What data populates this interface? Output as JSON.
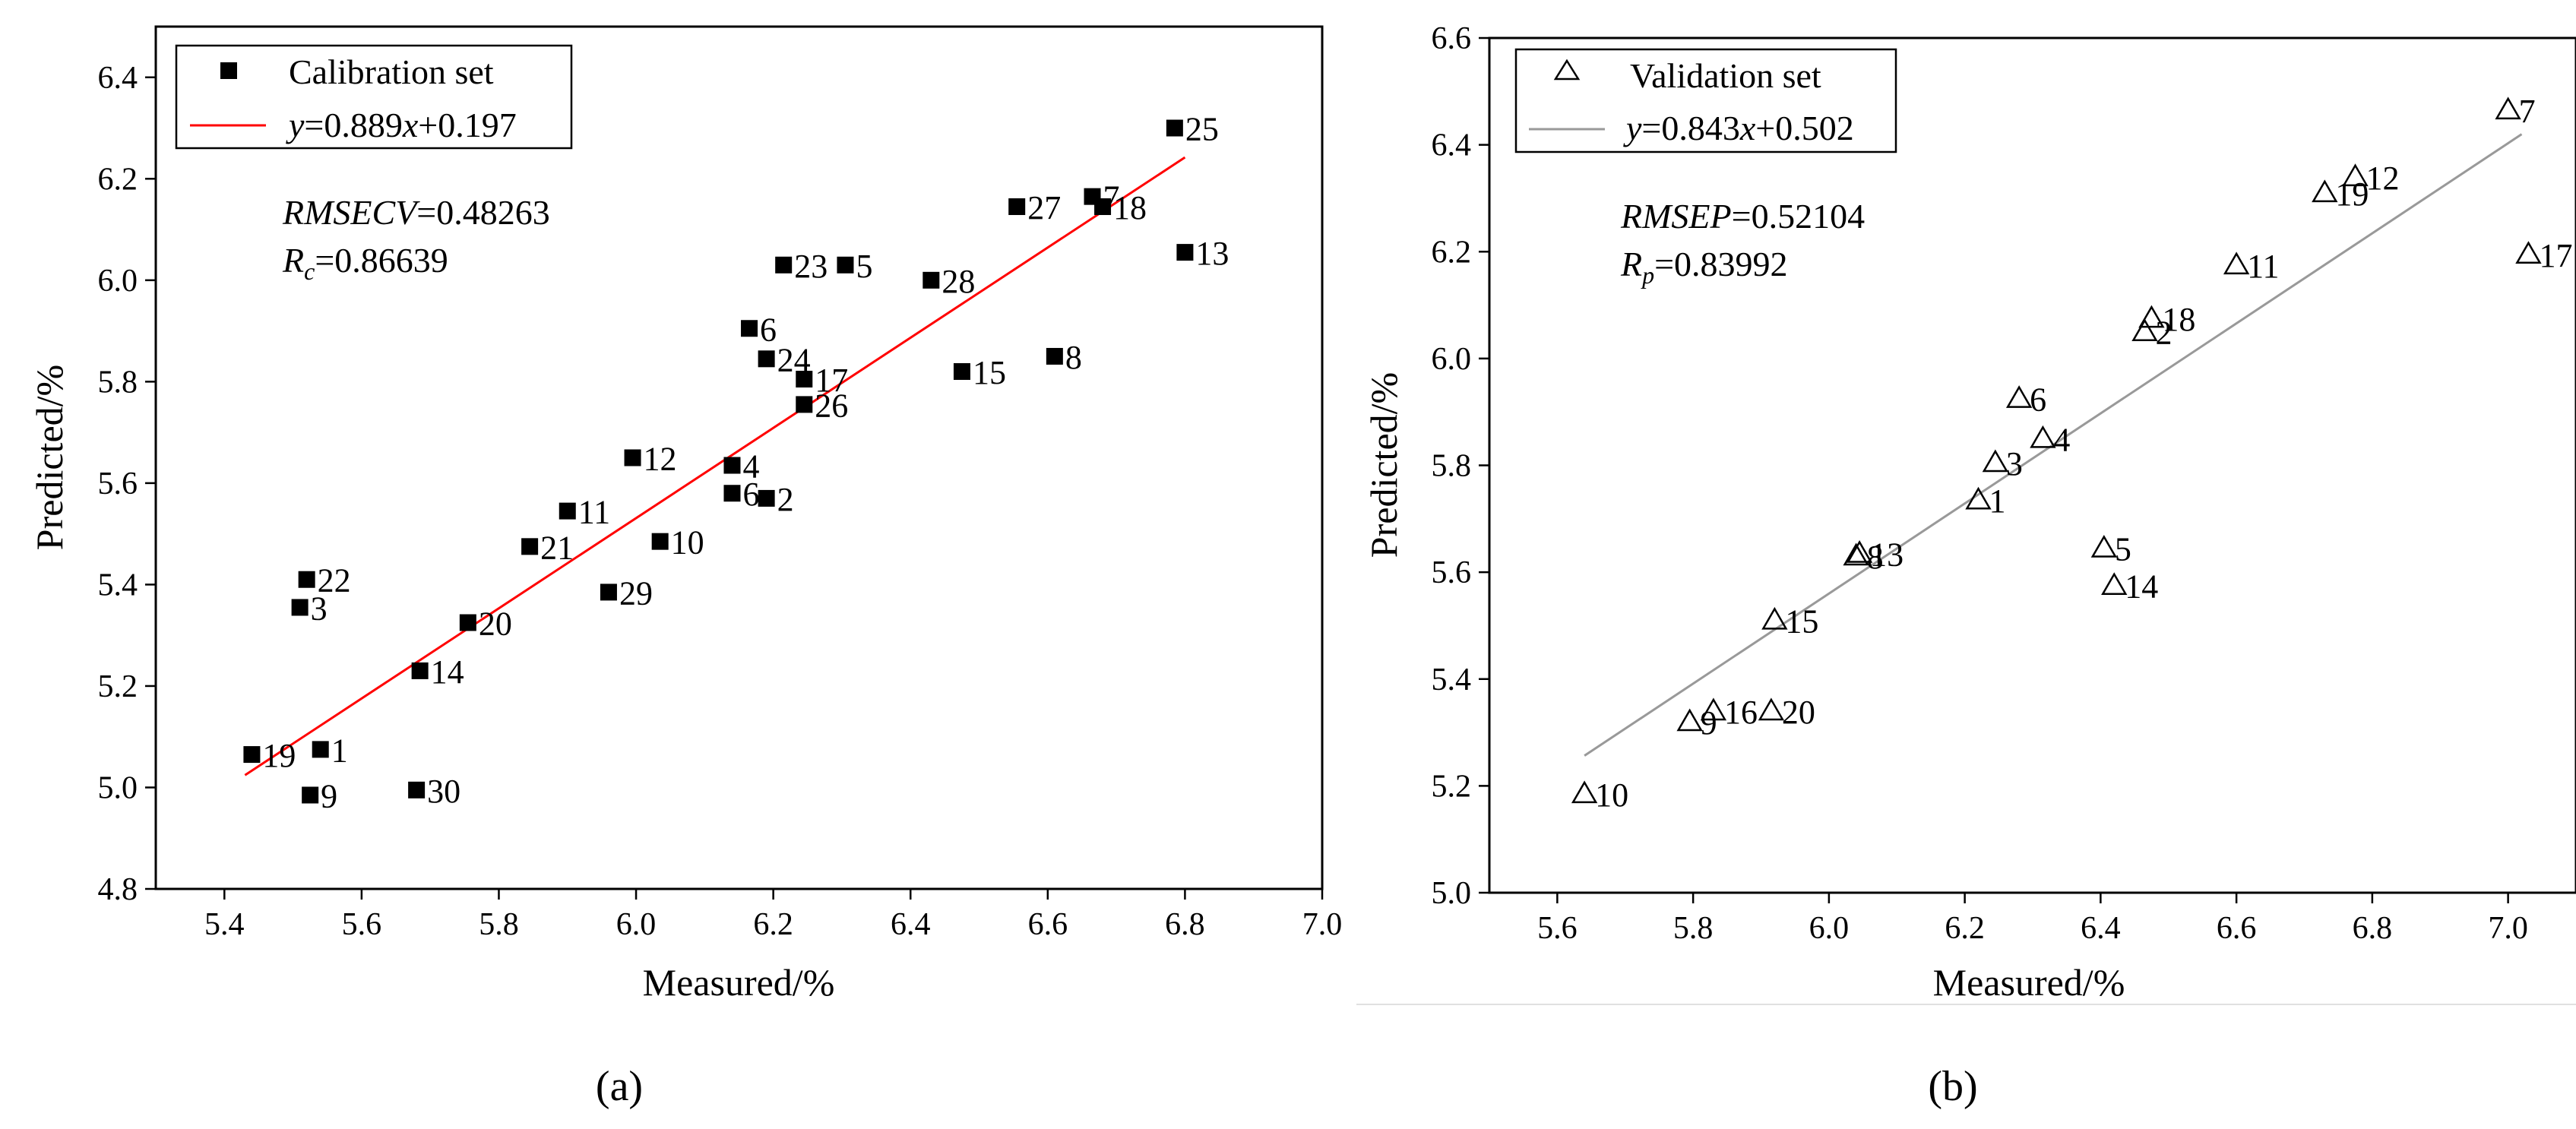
{
  "chart_data": [
    {
      "type": "scatter",
      "panel_label": "(a)",
      "xlabel": "Measured/%",
      "ylabel": "Predicted/%",
      "xlim": [
        5.3,
        7.0
      ],
      "ylim": [
        4.8,
        6.5
      ],
      "xticks": [
        5.4,
        5.6,
        5.8,
        6.0,
        6.2,
        6.4,
        6.6,
        6.8,
        7.0
      ],
      "yticks": [
        4.8,
        5.0,
        5.2,
        5.4,
        5.6,
        5.8,
        6.0,
        6.2,
        6.4
      ],
      "marker": "filled-square",
      "legend": {
        "series_name": "Calibration set",
        "fit_label": {
          "y": "y",
          "eq1": "=0.889",
          "x": "x",
          "eq2": "+0.197"
        }
      },
      "fit": {
        "slope": 0.889,
        "intercept": 0.197,
        "x_range": [
          5.43,
          6.8
        ],
        "color": "#ff0000"
      },
      "stats": {
        "line1": {
          "name": "RMSECV",
          "value": "=0.48263"
        },
        "line2": {
          "name": "R",
          "sub": "c",
          "value": "=0.86639"
        }
      },
      "points": [
        {
          "label": "1",
          "x": 5.54,
          "y": 5.075
        },
        {
          "label": "2",
          "x": 6.19,
          "y": 5.57
        },
        {
          "label": "3",
          "x": 5.51,
          "y": 5.355
        },
        {
          "label": "4",
          "x": 6.14,
          "y": 5.635
        },
        {
          "label": "5",
          "x": 6.305,
          "y": 6.03
        },
        {
          "label": "6",
          "x": 6.165,
          "y": 5.905
        },
        {
          "label": "6",
          "x": 6.14,
          "y": 5.58
        },
        {
          "label": "7",
          "x": 6.665,
          "y": 6.165
        },
        {
          "label": "8",
          "x": 6.61,
          "y": 5.85
        },
        {
          "label": "9",
          "x": 5.525,
          "y": 4.985
        },
        {
          "label": "10",
          "x": 6.035,
          "y": 5.485
        },
        {
          "label": "11",
          "x": 5.9,
          "y": 5.545
        },
        {
          "label": "12",
          "x": 5.995,
          "y": 5.65
        },
        {
          "label": "13",
          "x": 6.8,
          "y": 6.055
        },
        {
          "label": "14",
          "x": 5.685,
          "y": 5.23
        },
        {
          "label": "15",
          "x": 6.475,
          "y": 5.82
        },
        {
          "label": "17",
          "x": 6.245,
          "y": 5.805
        },
        {
          "label": "18",
          "x": 6.68,
          "y": 6.145
        },
        {
          "label": "19",
          "x": 5.44,
          "y": 5.065
        },
        {
          "label": "20",
          "x": 5.755,
          "y": 5.325
        },
        {
          "label": "21",
          "x": 5.845,
          "y": 5.475
        },
        {
          "label": "22",
          "x": 5.52,
          "y": 5.41
        },
        {
          "label": "23",
          "x": 6.215,
          "y": 6.03
        },
        {
          "label": "24",
          "x": 6.19,
          "y": 5.845
        },
        {
          "label": "25",
          "x": 6.785,
          "y": 6.3
        },
        {
          "label": "26",
          "x": 6.245,
          "y": 5.755
        },
        {
          "label": "27",
          "x": 6.555,
          "y": 6.145
        },
        {
          "label": "28",
          "x": 6.43,
          "y": 6.0
        },
        {
          "label": "29",
          "x": 5.96,
          "y": 5.385
        },
        {
          "label": "30",
          "x": 5.68,
          "y": 4.995
        }
      ]
    },
    {
      "type": "scatter",
      "panel_label": "(b)",
      "xlabel": "Measured/%",
      "ylabel": "Predicted/%",
      "xlim": [
        5.5,
        7.1
      ],
      "ylim": [
        5.0,
        6.6
      ],
      "xticks": [
        5.6,
        5.8,
        6.0,
        6.2,
        6.4,
        6.6,
        6.8,
        7.0
      ],
      "yticks": [
        5.0,
        5.2,
        5.4,
        5.6,
        5.8,
        6.0,
        6.2,
        6.4,
        6.6
      ],
      "marker": "open-triangle",
      "legend": {
        "series_name": "Validation set",
        "fit_label": {
          "y": "y",
          "eq1": "=0.843",
          "x": "x",
          "eq2": "+0.502"
        }
      },
      "fit": {
        "slope": 0.843,
        "intercept": 0.502,
        "x_range": [
          5.64,
          7.02
        ],
        "color": "#999999"
      },
      "stats": {
        "line1": {
          "name": "RMSEP",
          "value": "=0.52104"
        },
        "line2": {
          "name": "R",
          "sub": "p",
          "value": "=0.83992"
        }
      },
      "points": [
        {
          "label": "1",
          "x": 6.22,
          "y": 5.735
        },
        {
          "label": "2",
          "x": 6.465,
          "y": 6.05
        },
        {
          "label": "3",
          "x": 6.245,
          "y": 5.805
        },
        {
          "label": "4",
          "x": 6.315,
          "y": 5.85
        },
        {
          "label": "5",
          "x": 6.405,
          "y": 5.645
        },
        {
          "label": "6",
          "x": 6.28,
          "y": 5.925
        },
        {
          "label": "7",
          "x": 7.0,
          "y": 6.465
        },
        {
          "label": "8",
          "x": 6.04,
          "y": 5.63
        },
        {
          "label": "9",
          "x": 5.795,
          "y": 5.32
        },
        {
          "label": "10",
          "x": 5.64,
          "y": 5.185
        },
        {
          "label": "11",
          "x": 6.6,
          "y": 6.175
        },
        {
          "label": "12",
          "x": 6.775,
          "y": 6.34
        },
        {
          "label": "13",
          "x": 6.045,
          "y": 5.635
        },
        {
          "label": "14",
          "x": 6.42,
          "y": 5.575
        },
        {
          "label": "15",
          "x": 5.92,
          "y": 5.51
        },
        {
          "label": "16",
          "x": 5.83,
          "y": 5.34
        },
        {
          "label": "18",
          "x": 6.475,
          "y": 6.075
        },
        {
          "label": "19",
          "x": 6.73,
          "y": 6.31
        },
        {
          "label": "17",
          "x": 7.03,
          "y": 6.195
        },
        {
          "label": "20",
          "x": 5.915,
          "y": 5.34
        }
      ]
    }
  ]
}
